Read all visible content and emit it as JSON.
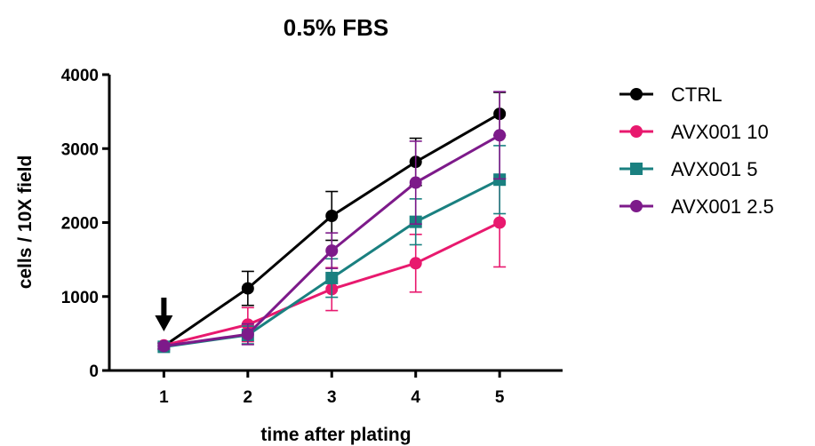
{
  "chart_data": {
    "type": "line",
    "title": "0.5% FBS",
    "xlabel": "time after plating",
    "ylabel": "cells / 10X field",
    "x": [
      1,
      2,
      3,
      4,
      5
    ],
    "xlim": [
      0.35,
      5.75
    ],
    "ylim": [
      0,
      4000
    ],
    "yticks": [
      0,
      1000,
      2000,
      3000,
      4000
    ],
    "xticks": [
      1,
      2,
      3,
      4,
      5
    ],
    "grid": false,
    "legend_position": "right",
    "annotation": {
      "type": "arrow",
      "direction": "down",
      "x": 1
    },
    "series": [
      {
        "name": "CTRL",
        "color": "#000000",
        "marker": "circle",
        "values": [
          330,
          1110,
          2090,
          2820,
          3470
        ],
        "errors": [
          40,
          230,
          330,
          320,
          290
        ]
      },
      {
        "name": "AVX001 10",
        "color": "#e8196e",
        "marker": "circle",
        "values": [
          340,
          620,
          1100,
          1450,
          2000
        ],
        "errors": [
          40,
          230,
          290,
          390,
          600
        ]
      },
      {
        "name": "AVX001 5",
        "color": "#1a8080",
        "marker": "square",
        "values": [
          320,
          480,
          1250,
          2010,
          2580
        ],
        "errors": [
          40,
          120,
          260,
          310,
          460
        ]
      },
      {
        "name": "AVX001 2.5",
        "color": "#7d1a8a",
        "marker": "circle",
        "values": [
          330,
          490,
          1620,
          2540,
          3180
        ],
        "errors": [
          40,
          140,
          240,
          560,
          590
        ]
      }
    ]
  }
}
